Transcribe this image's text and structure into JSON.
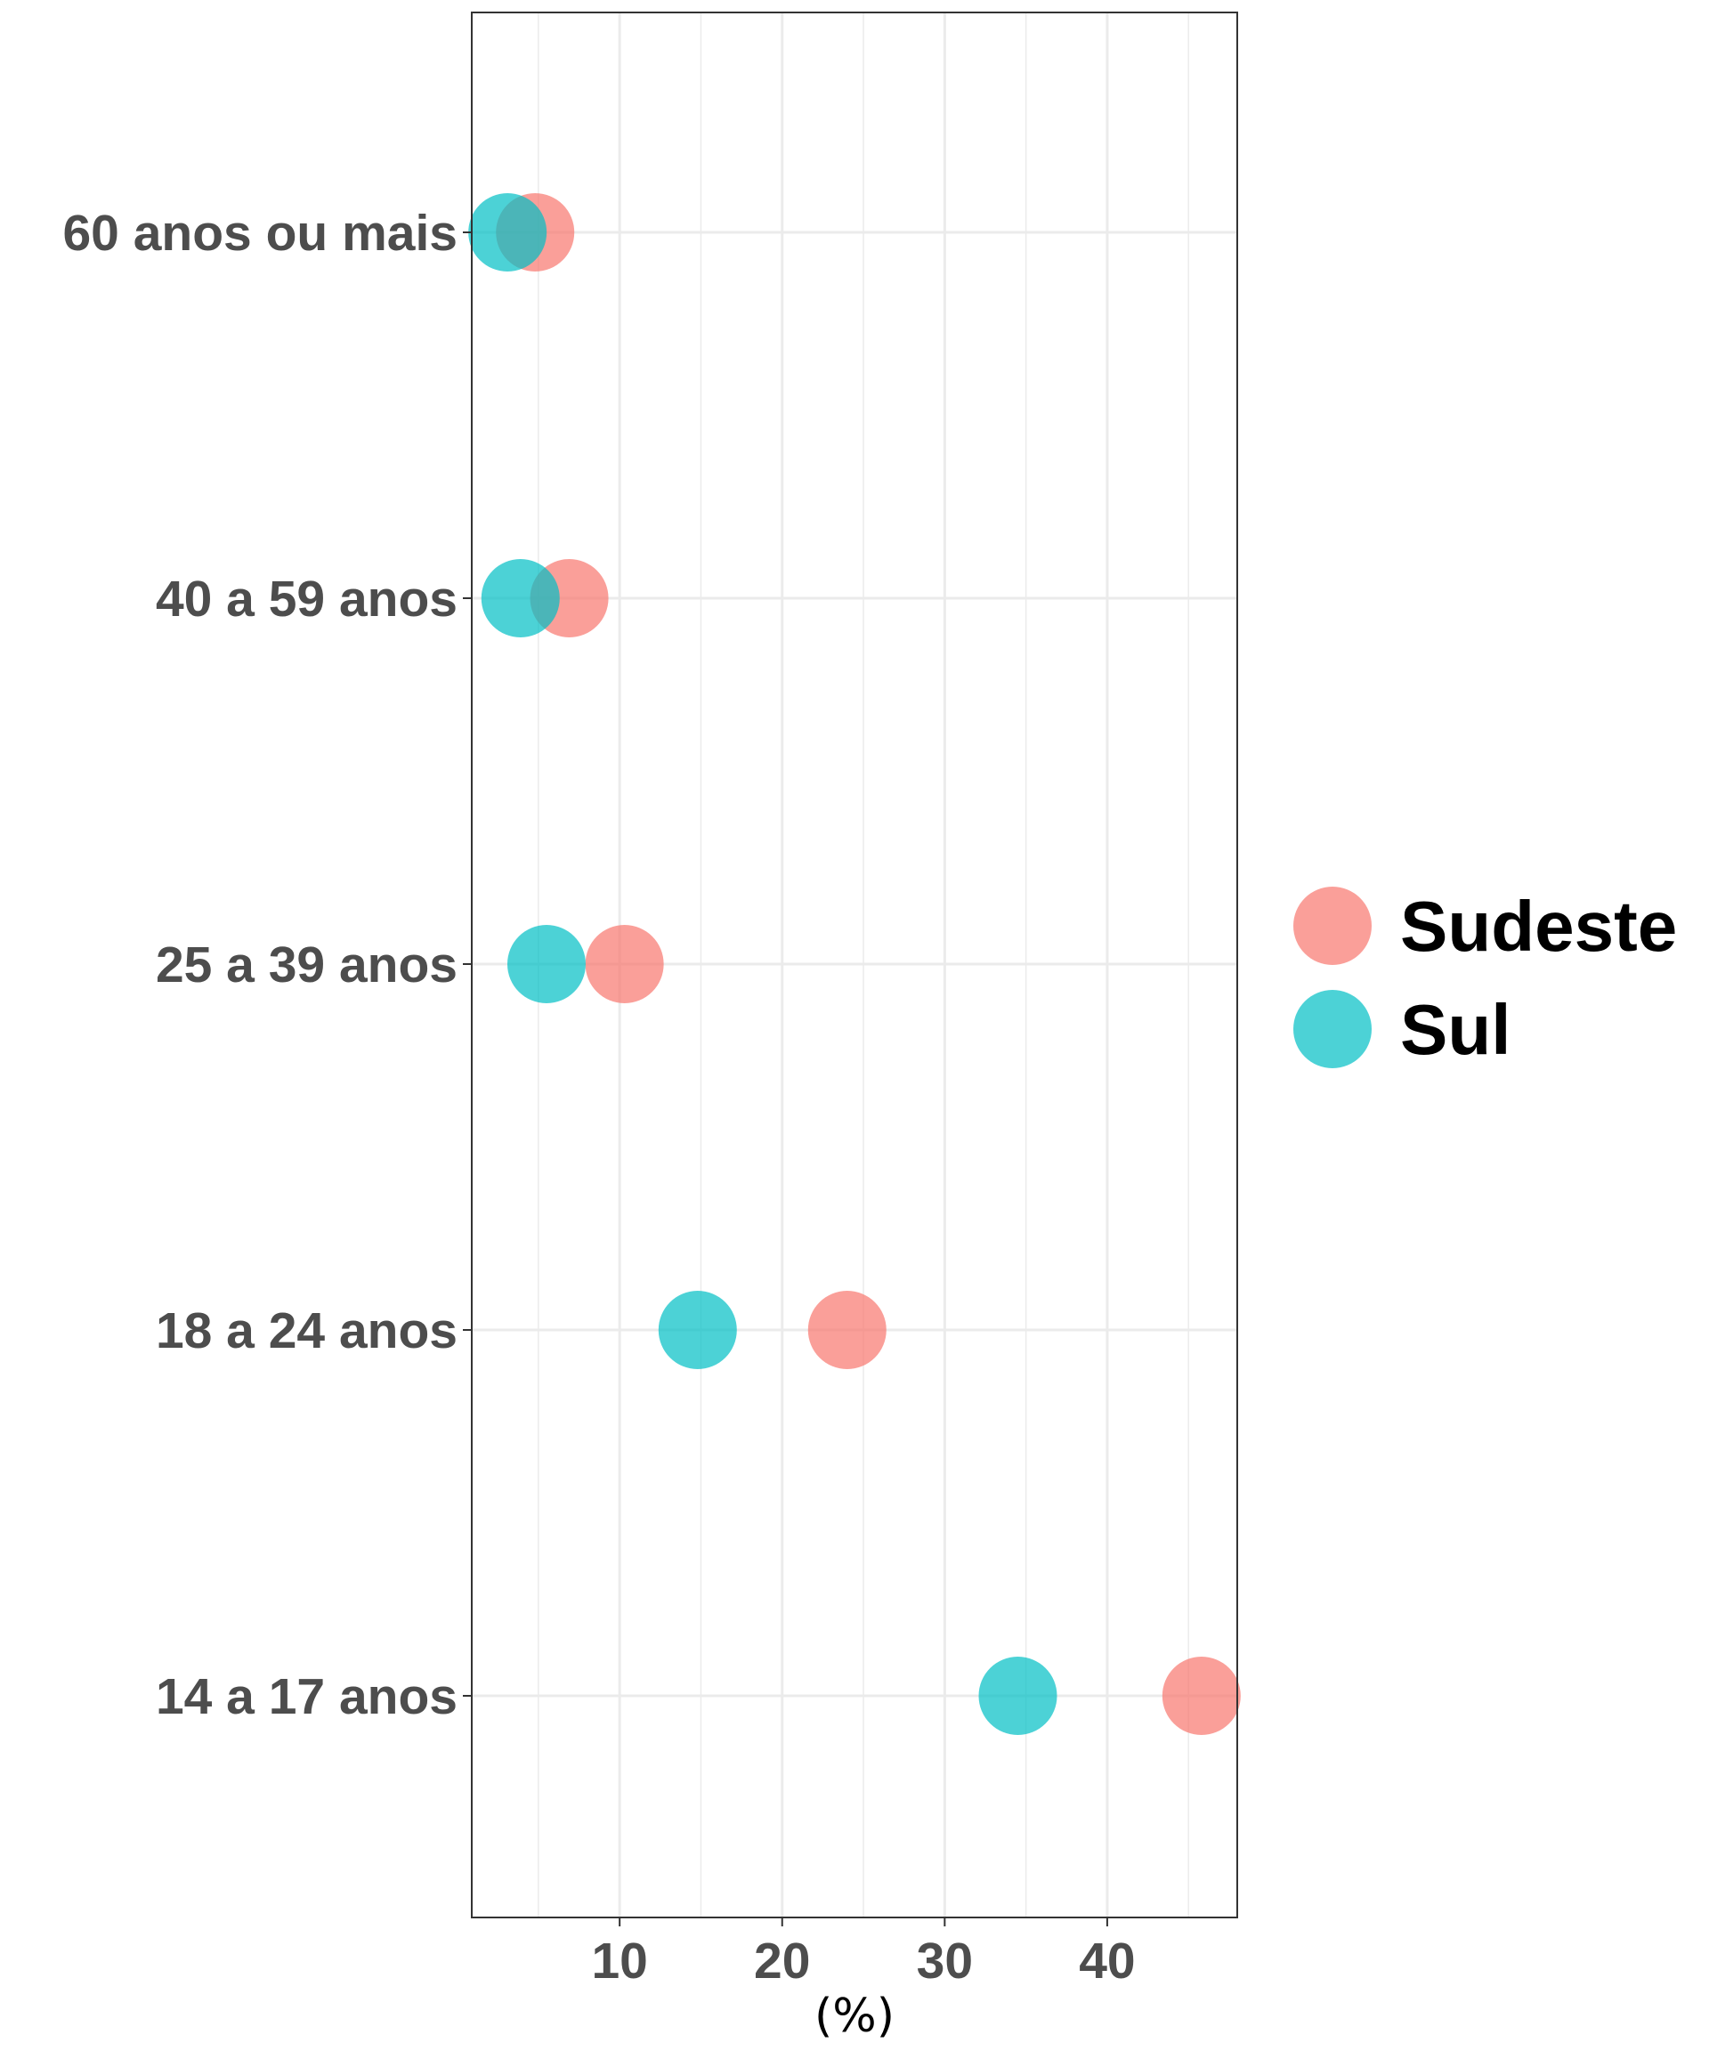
{
  "chart_data": {
    "type": "scatter",
    "title": "",
    "xlabel": "(%)",
    "ylabel": "",
    "categories": [
      "14 a 17 anos",
      "18 a 24 anos",
      "25 a 39 anos",
      "40 a 59 anos",
      "60 anos ou mais"
    ],
    "xlim": [
      0.9,
      48
    ],
    "xticks": [
      10,
      20,
      30,
      40
    ],
    "grid": true,
    "legend_position": "right",
    "series": [
      {
        "name": "Sudeste",
        "color": "#F8766D",
        "values": [
          45.8,
          24.0,
          10.3,
          6.9,
          4.8
        ]
      },
      {
        "name": "Sul",
        "color": "#00BFC4",
        "values": [
          34.5,
          14.8,
          5.5,
          3.9,
          3.1
        ]
      }
    ]
  }
}
